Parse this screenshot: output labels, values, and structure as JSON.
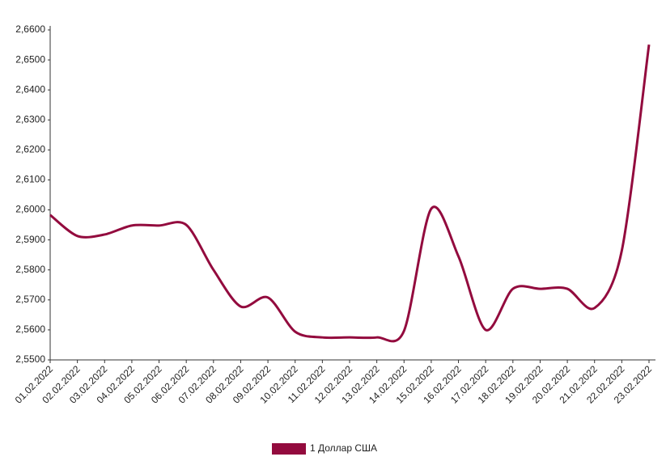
{
  "chart_data": {
    "type": "line",
    "categories": [
      "01.02.2022",
      "02.02.2022",
      "03.02.2022",
      "04.02.2022",
      "05.02.2022",
      "06.02.2022",
      "07.02.2022",
      "08.02.2022",
      "09.02.2022",
      "10.02.2022",
      "11.02.2022",
      "12.02.2022",
      "13.02.2022",
      "14.02.2022",
      "15.02.2022",
      "16.02.2022",
      "17.02.2022",
      "18.02.2022",
      "19.02.2022",
      "20.02.2022",
      "21.02.2022",
      "22.02.2022",
      "23.02.2022"
    ],
    "series": [
      {
        "name": "1 Доллар США",
        "color": "#930b3e",
        "values": [
          2.5983,
          2.5913,
          2.5918,
          2.5948,
          2.5948,
          2.595,
          2.58,
          2.5678,
          2.5708,
          2.5594,
          2.5575,
          2.5575,
          2.5575,
          2.5597,
          2.6004,
          2.5845,
          2.56,
          2.5737,
          2.5737,
          2.5737,
          2.5673,
          2.5864,
          2.6551
        ]
      }
    ],
    "ylim": [
      2.55,
      2.66
    ],
    "yticks": [
      {
        "value": 2.55,
        "label": "2,5500"
      },
      {
        "value": 2.56,
        "label": "2,5600"
      },
      {
        "value": 2.57,
        "label": "2,5700"
      },
      {
        "value": 2.58,
        "label": "2,5800"
      },
      {
        "value": 2.59,
        "label": "2,5900"
      },
      {
        "value": 2.6,
        "label": "2,6000"
      },
      {
        "value": 2.61,
        "label": "2,6100"
      },
      {
        "value": 2.62,
        "label": "2,6200"
      },
      {
        "value": 2.63,
        "label": "2,6300"
      },
      {
        "value": 2.64,
        "label": "2,6400"
      },
      {
        "value": 2.65,
        "label": "2,6500"
      },
      {
        "value": 2.66,
        "label": "2,6600"
      }
    ],
    "grid": false,
    "legend": "bottom"
  }
}
